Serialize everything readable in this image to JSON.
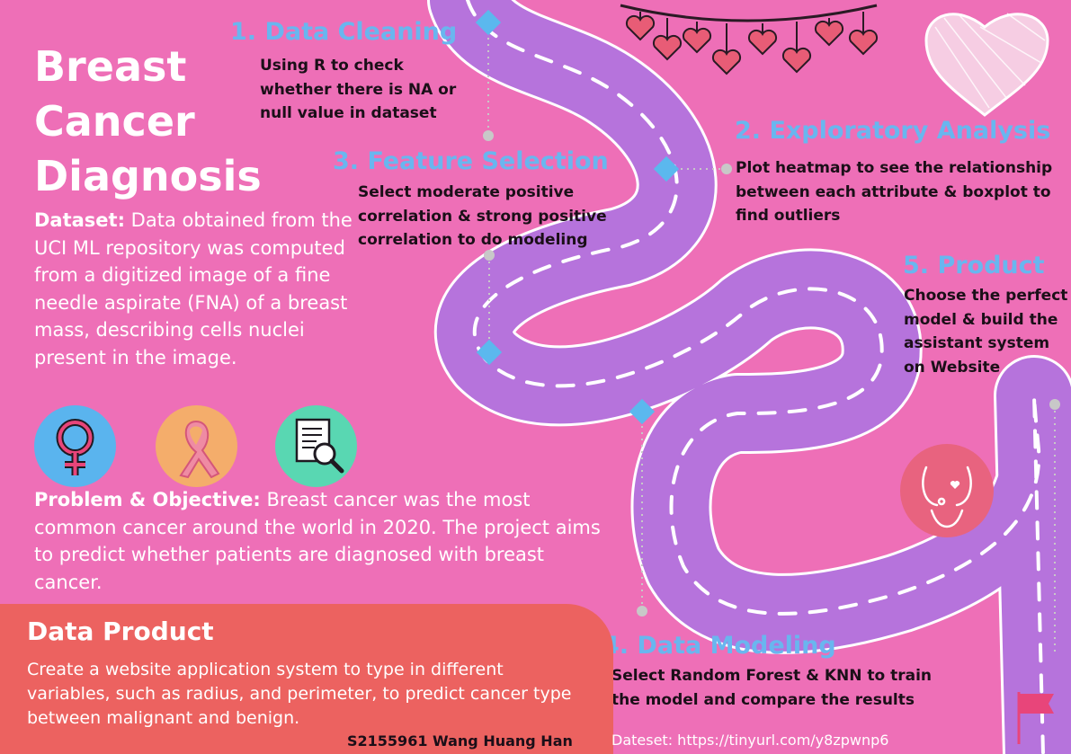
{
  "title": {
    "line1": "Breast",
    "line2": "Cancer",
    "line3": "Diagnosis"
  },
  "dataset": {
    "label": "Dataset:",
    "text": " Data obtained from the UCI ML repository was computed from a digitized image of a fine needle aspirate (FNA) of a breast mass, describing cells nuclei present in the image."
  },
  "icons": [
    "female-symbol-icon",
    "awareness-ribbon-icon",
    "document-search-icon",
    "breast-body-icon",
    "flag-icon",
    "heart-garland-icon",
    "scribble-heart-icon"
  ],
  "problem": {
    "label": "Problem & Objective:",
    "text": " Breast cancer was the most common cancer around the world in 2020. The project aims to predict whether patients are diagnosed with breast cancer."
  },
  "steps": {
    "s1": {
      "title": "1. Data Cleaning",
      "desc": "Using R to check whether there is NA or null value in dataset"
    },
    "s2": {
      "title": "2. Exploratory Analysis",
      "desc": "Plot heatmap to see the relationship between each attribute & boxplot to find outliers"
    },
    "s3": {
      "title": "3. Feature Selection",
      "desc": "Select moderate positive correlation & strong positive correlation to do modeling"
    },
    "s4": {
      "title": "4. Data Modeling",
      "desc": "Select Random Forest & KNN to train the model and compare the results"
    },
    "s5": {
      "title": "5. Product",
      "desc": "Choose the perfect model & build the assistant  system on Website"
    }
  },
  "product": {
    "title": "Data Product",
    "desc": "Create a website application system to type in different variables, such as radius, and perimeter, to predict cancer type between malignant and benign."
  },
  "author": "S2155961  Wang Huang Han",
  "dataset_link": "Dateset: https://tinyurl.com/y8zpwnp6",
  "colors": {
    "background": "#ee6fb7",
    "road": "#b673dc",
    "road_edge": "#ffffff",
    "step_title": "#69b6ef",
    "marker": "#5bb8ee",
    "product_box": "#ec6260",
    "icon_blue": "#5ab4ee",
    "icon_orange": "#f4ad6b",
    "icon_teal": "#59d7b2",
    "heart": "#e85c76"
  }
}
